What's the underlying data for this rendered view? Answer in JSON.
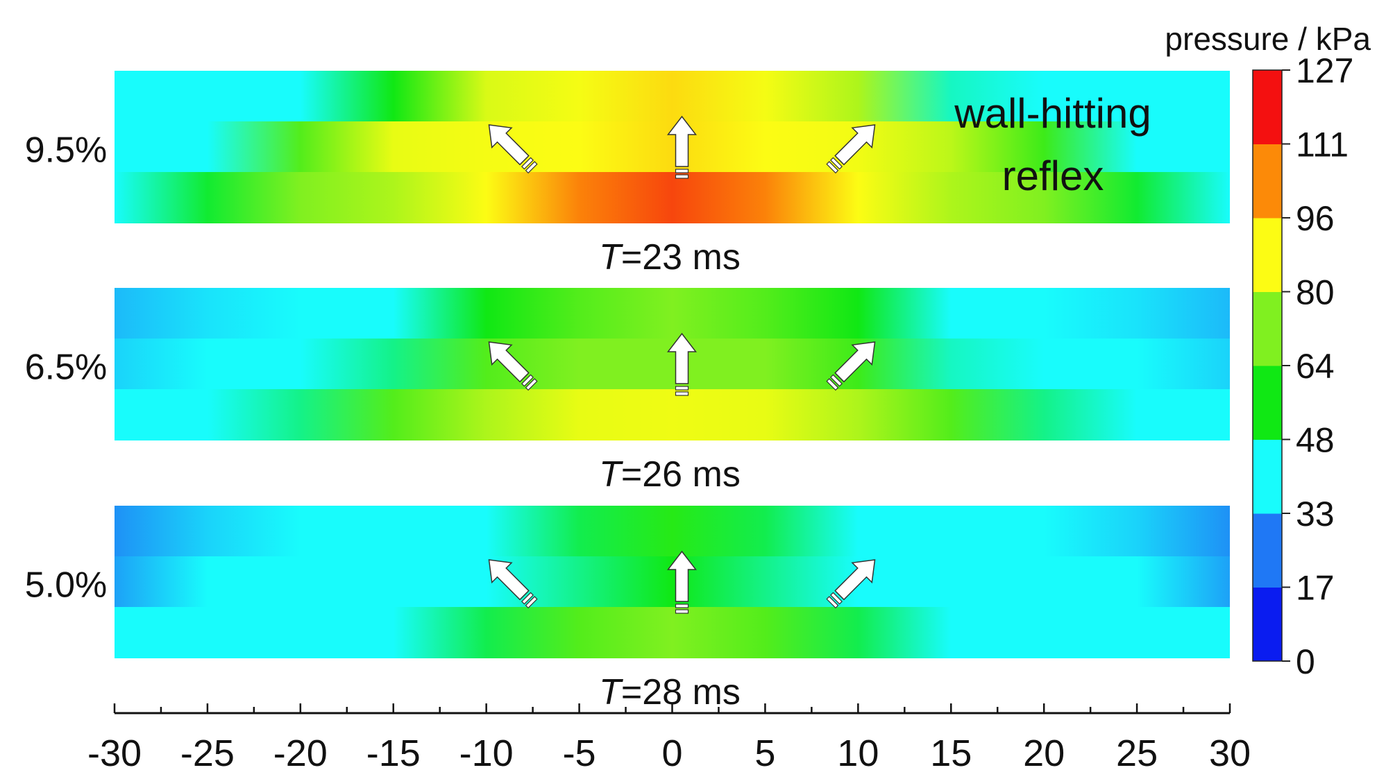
{
  "chart_data": {
    "type": "heatmap",
    "title": "",
    "xlabel": "",
    "ylabel": "",
    "x_range": [
      -30,
      30
    ],
    "x_ticks": [
      "-30",
      "-25",
      "-20",
      "-15",
      "-10",
      "-5",
      "0",
      "5",
      "10",
      "15",
      "20",
      "25",
      "30"
    ],
    "colorbar": {
      "title": "pressure / kPa",
      "levels": [
        "0",
        "17",
        "33",
        "48",
        "64",
        "80",
        "96",
        "111",
        "127"
      ],
      "colors": [
        "#0a1cf0",
        "#1f78f5",
        "#18fcfc",
        "#10e814",
        "#80f020",
        "#fcfc14",
        "#fc8a08",
        "#f41010"
      ]
    },
    "panels": [
      {
        "row_label": "9.5%",
        "time_prefix": "T",
        "time_text": "=23 ms",
        "annotation": [
          "wall-hitting",
          "reflex"
        ],
        "pressure_profile": {
          "x": [
            -30,
            -25,
            -20,
            -15,
            -10,
            -5,
            0,
            5,
            10,
            15,
            20,
            25,
            30
          ],
          "bottom": [
            33,
            55,
            66,
            72,
            92,
            108,
            118,
            108,
            92,
            72,
            66,
            55,
            33
          ],
          "middle": [
            33,
            45,
            62,
            80,
            88,
            92,
            96,
            92,
            86,
            74,
            60,
            45,
            33
          ],
          "top": [
            33,
            38,
            45,
            56,
            78,
            88,
            96,
            88,
            72,
            50,
            40,
            36,
            33
          ]
        }
      },
      {
        "row_label": "6.5%",
        "time_prefix": "T",
        "time_text": "=26 ms",
        "annotation": [],
        "pressure_profile": {
          "x": [
            -30,
            -25,
            -20,
            -15,
            -10,
            -5,
            0,
            5,
            10,
            15,
            20,
            25,
            30
          ],
          "bottom": [
            33,
            40,
            52,
            62,
            72,
            80,
            84,
            80,
            72,
            62,
            52,
            40,
            33
          ],
          "middle": [
            28,
            33,
            40,
            52,
            62,
            66,
            66,
            66,
            60,
            50,
            40,
            33,
            28
          ],
          "top": [
            25,
            30,
            38,
            46,
            56,
            62,
            66,
            62,
            56,
            46,
            38,
            30,
            25
          ]
        }
      },
      {
        "row_label": "5.0%",
        "time_prefix": "T",
        "time_text": "=28 ms",
        "annotation": [],
        "pressure_profile": {
          "x": [
            -30,
            -25,
            -20,
            -15,
            -10,
            -5,
            0,
            5,
            10,
            15,
            20,
            25,
            30
          ],
          "bottom": [
            33,
            38,
            42,
            46,
            54,
            62,
            66,
            62,
            54,
            46,
            42,
            38,
            33
          ],
          "middle": [
            22,
            33,
            40,
            42,
            46,
            52,
            56,
            52,
            46,
            42,
            38,
            33,
            22
          ],
          "top": [
            20,
            28,
            36,
            42,
            46,
            54,
            58,
            54,
            46,
            42,
            36,
            28,
            20
          ]
        }
      }
    ],
    "arrows": [
      {
        "direction": "up-left"
      },
      {
        "direction": "up"
      },
      {
        "direction": "up-right"
      }
    ]
  }
}
